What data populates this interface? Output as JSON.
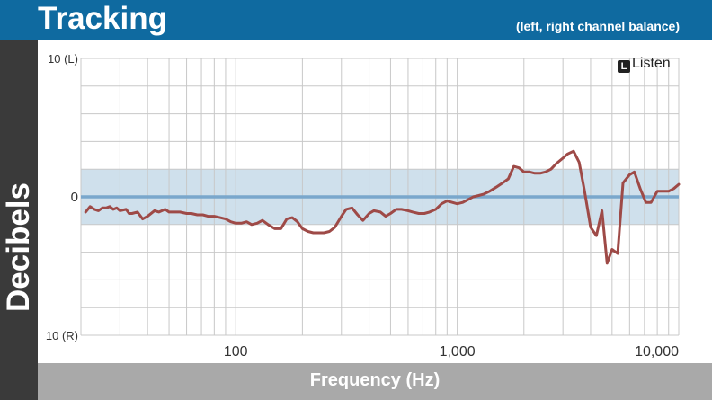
{
  "header": {
    "title": "Tracking",
    "subtitle": "(left, right channel balance)"
  },
  "logo": {
    "text": "Listen",
    "mark": "🎧"
  },
  "colors": {
    "header": "#0f6aa0",
    "line": "#9e4a47",
    "zero_line": "#7aa7cc",
    "band": "#cfe0ec"
  },
  "chart_data": {
    "type": "line",
    "xlabel": "Frequency (Hz)",
    "ylabel": "Decibels",
    "xscale": "log",
    "xlim": [
      20,
      10000
    ],
    "ylim": [
      -10,
      10
    ],
    "band": [
      -2,
      2
    ],
    "y_ticks": [
      {
        "value": 10,
        "label": "10 (L)"
      },
      {
        "value": 0,
        "label": "0"
      },
      {
        "value": -10,
        "label": "10 (R)"
      }
    ],
    "x_ticks": [
      {
        "value": 100,
        "label": "100"
      },
      {
        "value": 1000,
        "label": "1,000"
      },
      {
        "value": 10000,
        "label": "10,000"
      }
    ],
    "series": [
      {
        "x": [
          21,
          22,
          23,
          24,
          25,
          26,
          27,
          28,
          29,
          30,
          32,
          33,
          34,
          36,
          38,
          40,
          43,
          45,
          48,
          50,
          53,
          56,
          60,
          63,
          67,
          71,
          75,
          80,
          85,
          90,
          95,
          100,
          106,
          112,
          118,
          125,
          132,
          140,
          150,
          160,
          170,
          180,
          190,
          200,
          212,
          224,
          237,
          250,
          265,
          280,
          300,
          315,
          335,
          355,
          375,
          400,
          420,
          450,
          475,
          500,
          530,
          560,
          600,
          630,
          670,
          710,
          750,
          800,
          850,
          900,
          950,
          1000,
          1060,
          1120,
          1180,
          1250,
          1320,
          1400,
          1500,
          1600,
          1700,
          1800,
          1900,
          2000,
          2120,
          2240,
          2370,
          2500,
          2650,
          2800,
          3000,
          3150,
          3350,
          3550,
          3750,
          4000,
          4250,
          4500,
          4750,
          5000,
          5300,
          5600,
          6000,
          6300,
          6700,
          7100,
          7500,
          8000,
          8500,
          9000,
          9500,
          10000
        ],
        "y": [
          -1.1,
          -0.7,
          -0.9,
          -1.0,
          -0.8,
          -0.8,
          -0.7,
          -0.9,
          -0.8,
          -1.0,
          -0.9,
          -1.2,
          -1.2,
          -1.1,
          -1.6,
          -1.4,
          -1.0,
          -1.1,
          -0.9,
          -1.1,
          -1.1,
          -1.1,
          -1.2,
          -1.2,
          -1.3,
          -1.3,
          -1.4,
          -1.4,
          -1.5,
          -1.6,
          -1.8,
          -1.9,
          -1.9,
          -1.8,
          -2.0,
          -1.9,
          -1.7,
          -2.0,
          -2.3,
          -2.3,
          -1.6,
          -1.5,
          -1.8,
          -2.3,
          -2.5,
          -2.6,
          -2.6,
          -2.6,
          -2.5,
          -2.2,
          -1.4,
          -0.9,
          -0.8,
          -1.3,
          -1.7,
          -1.2,
          -1.0,
          -1.1,
          -1.4,
          -1.2,
          -0.9,
          -0.9,
          -1.0,
          -1.1,
          -1.2,
          -1.2,
          -1.1,
          -0.9,
          -0.5,
          -0.3,
          -0.4,
          -0.5,
          -0.4,
          -0.2,
          0.0,
          0.1,
          0.2,
          0.4,
          0.7,
          1.0,
          1.3,
          2.2,
          2.1,
          1.8,
          1.8,
          1.7,
          1.7,
          1.8,
          2.0,
          2.4,
          2.8,
          3.1,
          3.3,
          2.5,
          0.5,
          -2.2,
          -2.8,
          -1.0,
          -4.8,
          -3.8,
          -4.1,
          1.0,
          1.6,
          1.8,
          0.6,
          -0.4,
          -0.4,
          0.4,
          0.4,
          0.4,
          0.6,
          0.9
        ]
      }
    ]
  }
}
